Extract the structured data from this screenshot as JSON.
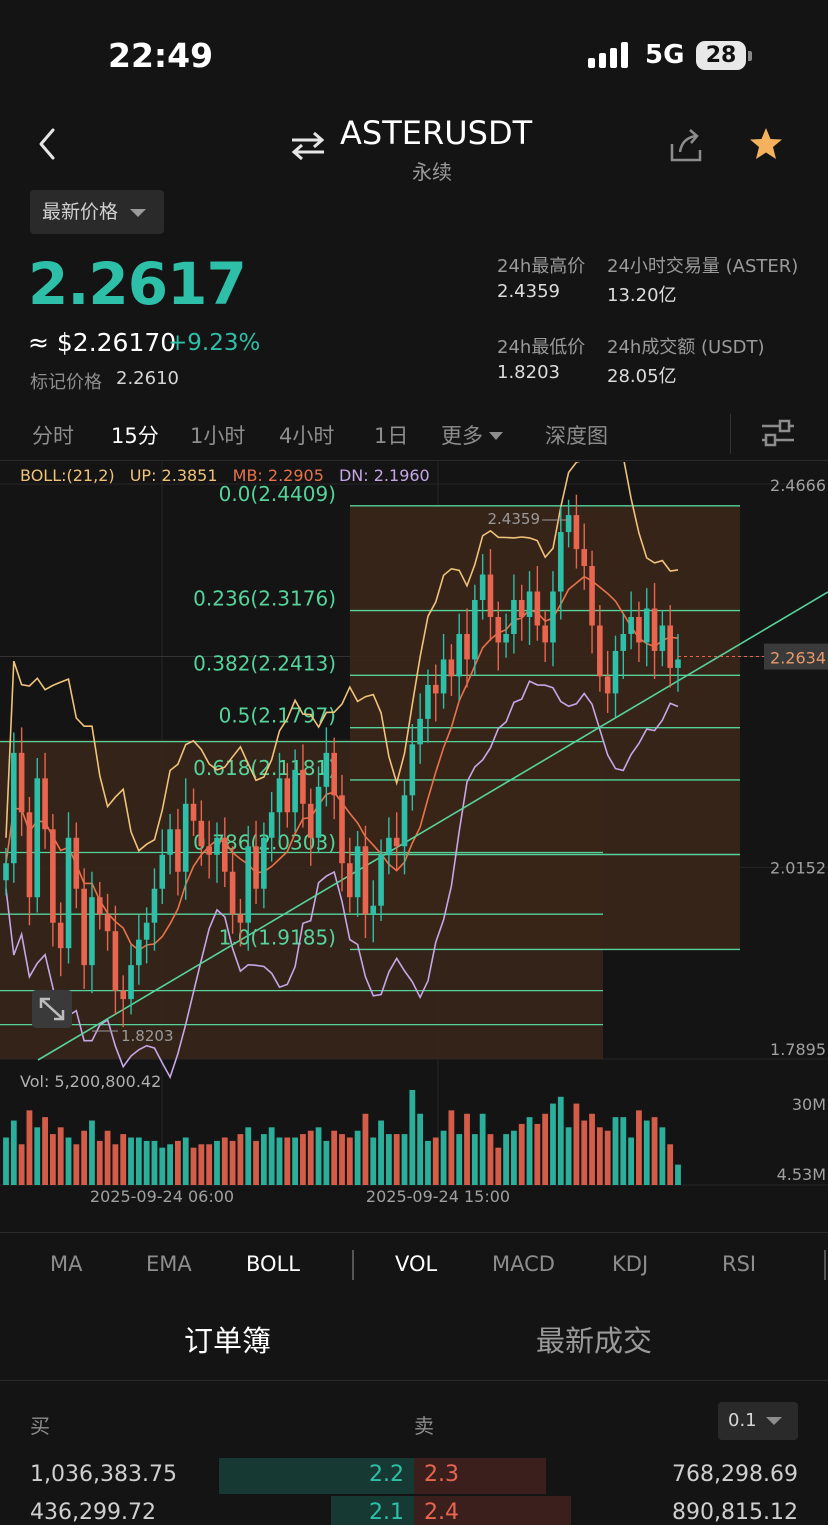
{
  "status": {
    "time": "22:49",
    "network": "5G",
    "battery": "28"
  },
  "header": {
    "pair": "ASTERUSDT",
    "subtitle": "永续"
  },
  "price_selector": "最新价格",
  "price": {
    "last": "2.2617",
    "usd": "≈ $2.26170",
    "change": "+9.23%",
    "mark_label": "标记价格",
    "mark_value": "2.2610"
  },
  "stats": {
    "high_label": "24h最高价",
    "high": "2.4359",
    "vol_label": "24小时交易量 (ASTER)",
    "vol": "13.20亿",
    "low_label": "24h最低价",
    "low": "1.8203",
    "turnover_label": "24h成交额 (USDT)",
    "turnover": "28.05亿"
  },
  "timeframes": [
    "分时",
    "15分",
    "1小时",
    "4小时",
    "1日",
    "更多",
    "深度图"
  ],
  "active_timeframe": "15分",
  "boll": {
    "label": "BOLL:(21,2)",
    "up": "UP: 2.3851",
    "mb": "MB: 2.2905",
    "dn": "DN: 2.1960"
  },
  "colors": {
    "up": "#2ebfa8",
    "down": "#e8654f",
    "boll_up": "#f0c27a",
    "boll_mb": "#e8734a",
    "boll_dn": "#c6a6e6",
    "fib": "#56d39b"
  },
  "chart_data": {
    "type": "candlestick",
    "title": "",
    "price_axis_labels": [
      "2.4666",
      "2.2634",
      "2.0152",
      "1.7895"
    ],
    "ylim": [
      1.7895,
      2.4666
    ],
    "current_price_tag": "2.2634",
    "high_marker": "2.4359",
    "low_marker": "1.8203",
    "time_labels": [
      "2025-09-24 06:00",
      "2025-09-24 15:00"
    ],
    "fib_levels": [
      {
        "label": "0.0(2.4409)",
        "value": 2.4409
      },
      {
        "label": "0.236(2.3176)",
        "value": 2.3176
      },
      {
        "label": "0.382(2.2413)",
        "value": 2.2413
      },
      {
        "label": "0.5(2.1797)",
        "value": 2.1797
      },
      {
        "label": "0.618(2.1181)",
        "value": 2.1181
      },
      {
        "label": "0.786(2.0303)",
        "value": 2.0303
      },
      {
        "label": "1.0(1.9185)",
        "value": 1.9185
      }
    ],
    "close": [
      2.02,
      2.15,
      2.08,
      1.98,
      2.12,
      2.06,
      1.95,
      1.92,
      2.05,
      1.99,
      1.9,
      1.98,
      1.96,
      1.94,
      1.87,
      1.86,
      1.9,
      1.93,
      1.95,
      1.99,
      2.03,
      2.06,
      2.01,
      2.09,
      2.07,
      2.04,
      2.03,
      2.05,
      2.01,
      1.96,
      1.95,
      2.04,
      1.99,
      2.05,
      2.08,
      2.12,
      2.08,
      2.13,
      2.09,
      2.05,
      2.11,
      2.15,
      2.1,
      2.02,
      1.98,
      2.04,
      1.96,
      1.97,
      2.03,
      2.05,
      2.04,
      2.1,
      2.16,
      2.19,
      2.23,
      2.22,
      2.26,
      2.24,
      2.29,
      2.26,
      2.33,
      2.36,
      2.31,
      2.28,
      2.29,
      2.33,
      2.31,
      2.34,
      2.3,
      2.28,
      2.34,
      2.41,
      2.43,
      2.39,
      2.37,
      2.3,
      2.24,
      2.22,
      2.27,
      2.29,
      2.31,
      2.28,
      2.32,
      2.27,
      2.3,
      2.25,
      2.26
    ],
    "volume": [
      14,
      19,
      12,
      22,
      17,
      20,
      15,
      17,
      14,
      12,
      16,
      19,
      13,
      16,
      12,
      15,
      14,
      14,
      13,
      13,
      11,
      12,
      13,
      14,
      11,
      12,
      12,
      13,
      14,
      13,
      15,
      17,
      13,
      15,
      17,
      14,
      14,
      14,
      15,
      16,
      17,
      13,
      16,
      15,
      14,
      16,
      21,
      14,
      19,
      15,
      15,
      15,
      28,
      21,
      13,
      14,
      16,
      22,
      15,
      21,
      15,
      21,
      15,
      11,
      15,
      16,
      18,
      20,
      18,
      21,
      24,
      26,
      17,
      24,
      19,
      21,
      17,
      16,
      20,
      20,
      14,
      22,
      19,
      20,
      17,
      12,
      6
    ],
    "volume_label": "Vol: 5,200,800.42",
    "volume_axis": [
      "30M",
      "4.53M"
    ]
  },
  "indicators": [
    "MA",
    "EMA",
    "BOLL",
    "VOL",
    "MACD",
    "KDJ",
    "RSI"
  ],
  "active_main_indicator": "BOLL",
  "active_sub_indicator": "VOL",
  "book_tabs": [
    "订单簿",
    "最新成交"
  ],
  "order_book": {
    "buy_label": "买",
    "sell_label": "卖",
    "precision": "0.1",
    "rows": [
      {
        "bid_qty": "1,036,383.75",
        "bid_price": "2.2",
        "ask_price": "2.3",
        "ask_qty": "768,298.69",
        "bid_depth": 0.47,
        "ask_depth": 0.32
      },
      {
        "bid_qty": "436,299.72",
        "bid_price": "2.1",
        "ask_price": "2.4",
        "ask_qty": "890,815.12",
        "bid_depth": 0.2,
        "ask_depth": 0.38
      }
    ]
  }
}
